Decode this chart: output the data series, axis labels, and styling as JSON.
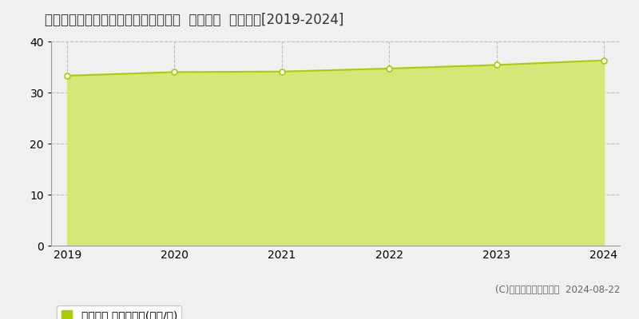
{
  "title": "栃木県宇都宮市城東２丁目２６番３外  地価公示  地価推移[2019-2024]",
  "years": [
    2019,
    2020,
    2021,
    2022,
    2023,
    2024
  ],
  "values": [
    33.3,
    34.0,
    34.1,
    34.7,
    35.4,
    36.3
  ],
  "ylim": [
    0,
    40
  ],
  "yticks": [
    0,
    10,
    20,
    30,
    40
  ],
  "line_color": "#aacc00",
  "fill_color": "#d4e87a",
  "marker_color": "#ffffff",
  "marker_edge_color": "#aacc00",
  "background_color": "#f0f0f0",
  "plot_bg_color": "#f0f0f0",
  "grid_color": "#bbbbbb",
  "legend_label": "地価公示 平均坪単価(万円/坪)",
  "legend_marker_color": "#aacc00",
  "copyright_text": "(C)土地価格ドットコム  2024-08-22",
  "title_fontsize": 12,
  "axis_fontsize": 10,
  "legend_fontsize": 10
}
